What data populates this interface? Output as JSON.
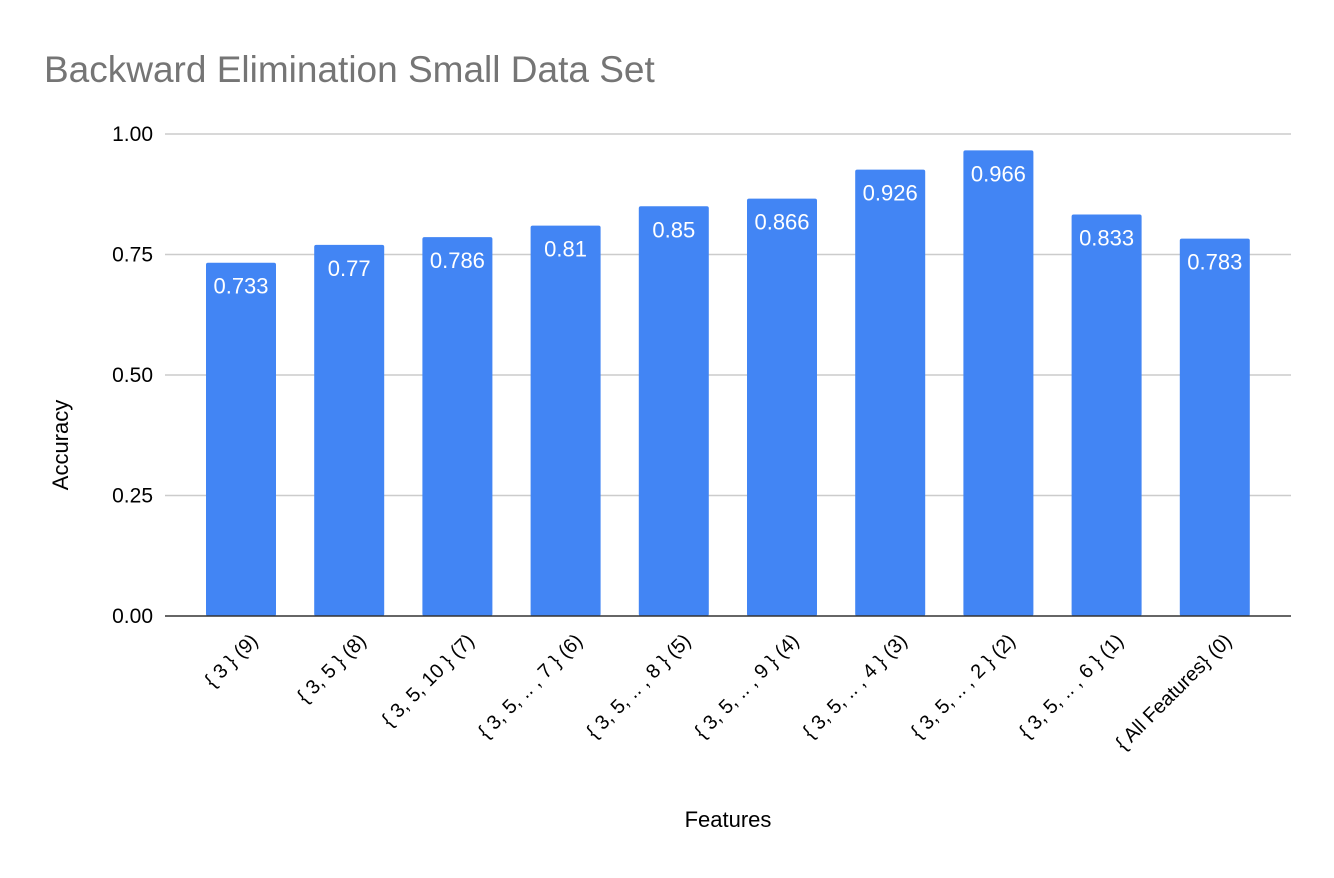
{
  "chart_data": {
    "type": "bar",
    "title": "Backward Elimination Small Data Set",
    "xlabel": "Features",
    "ylabel": "Accuracy",
    "ylim": [
      0,
      1
    ],
    "yticks": [
      "0.00",
      "0.25",
      "0.50",
      "0.75",
      "1.00"
    ],
    "grid": true,
    "color": "#4285f4",
    "categories": [
      "{ 3 } (9)",
      "{ 3, 5 } (8)",
      "{ 3, 5, 10 } (7)",
      "{ 3, 5, .. , 7 } (6)",
      "{ 3, 5, .. , 8 } (5)",
      "{ 3, 5, .. , 9 } (4)",
      "{ 3, 5, .. , 4 } (3)",
      "{ 3, 5, .. , 2 } (2)",
      "{ 3, 5, .. , 6 } (1)",
      "{ All Features} (0)"
    ],
    "values": [
      0.733,
      0.77,
      0.786,
      0.81,
      0.85,
      0.866,
      0.926,
      0.966,
      0.833,
      0.783
    ],
    "data_labels": [
      "0.733",
      "0.77",
      "0.786",
      "0.81",
      "0.85",
      "0.866",
      "0.926",
      "0.966",
      "0.833",
      "0.783"
    ]
  }
}
